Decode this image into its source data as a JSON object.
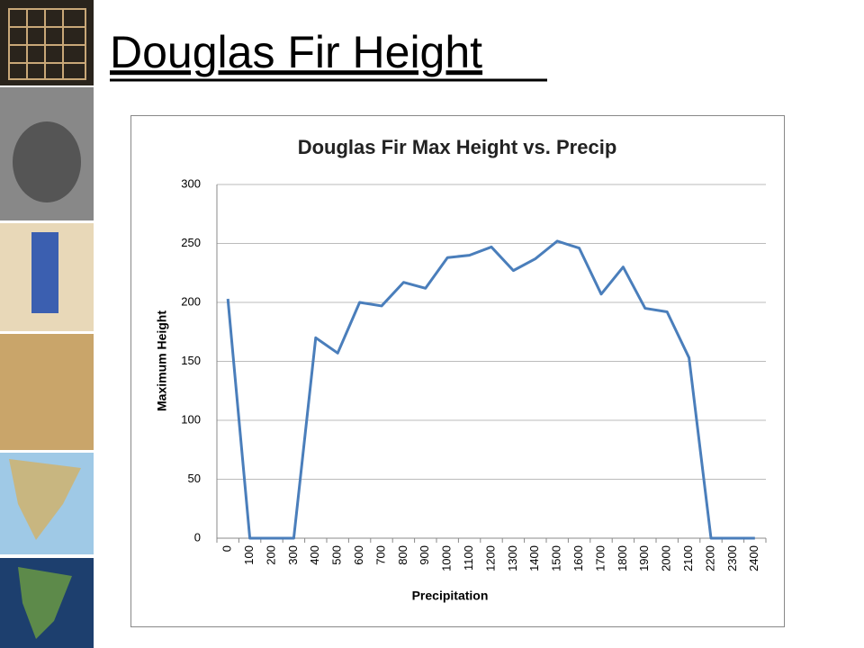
{
  "slide_title": "Douglas Fir Height",
  "chart_data": {
    "type": "line",
    "title": "Douglas Fir Max Height vs. Precip",
    "x_label": "Precipitation",
    "y_label": "Maximum Height",
    "categories": [
      "0",
      "100",
      "200",
      "300",
      "400",
      "500",
      "600",
      "700",
      "800",
      "900",
      "1000",
      "1100",
      "1200",
      "1300",
      "1400",
      "1500",
      "1600",
      "1700",
      "1800",
      "1900",
      "2000",
      "2100",
      "2200",
      "2300",
      "2400"
    ],
    "series": [
      {
        "color": "#4a7ebb",
        "values": [
          203,
          0,
          0,
          0,
          170,
          157,
          200,
          197,
          217,
          212,
          238,
          240,
          247,
          227,
          237,
          252,
          246,
          207,
          230,
          195,
          192,
          153,
          0,
          0,
          0
        ]
      }
    ],
    "ylim": [
      0,
      300
    ],
    "yticks": [
      0,
      50,
      100,
      150,
      200,
      250,
      300
    ],
    "grid": true
  }
}
